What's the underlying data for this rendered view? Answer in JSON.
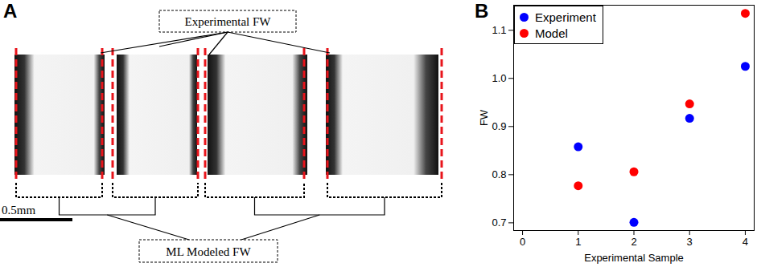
{
  "panel_a": {
    "label": "A",
    "top_callout": "Experimental FW",
    "bottom_callout": "ML Modeled FW",
    "scale_bar": "0.5mm"
  },
  "chart_data": {
    "type": "scatter",
    "panel_label": "B",
    "x_label": "Experimental Sample",
    "y_label": "FW",
    "x": [
      1,
      2,
      3,
      4
    ],
    "series": [
      {
        "name": "Experiment",
        "color": "#0000ff",
        "marker": "circle",
        "values": [
          0.858,
          0.701,
          0.917,
          1.025
        ]
      },
      {
        "name": "Model",
        "color": "#ff0000",
        "marker": "circle",
        "values": [
          0.777,
          0.806,
          0.947,
          1.135
        ]
      }
    ],
    "xlim": [
      -0.16,
      4.16
    ],
    "xticks": [
      0,
      1,
      2,
      3,
      4
    ],
    "ylim": [
      0.684,
      1.152
    ],
    "yticks": [
      0.7,
      0.8,
      0.9,
      {
        "value": 1,
        "label": "1.0"
      },
      1.1
    ],
    "legend": "top-left",
    "grid": false
  }
}
